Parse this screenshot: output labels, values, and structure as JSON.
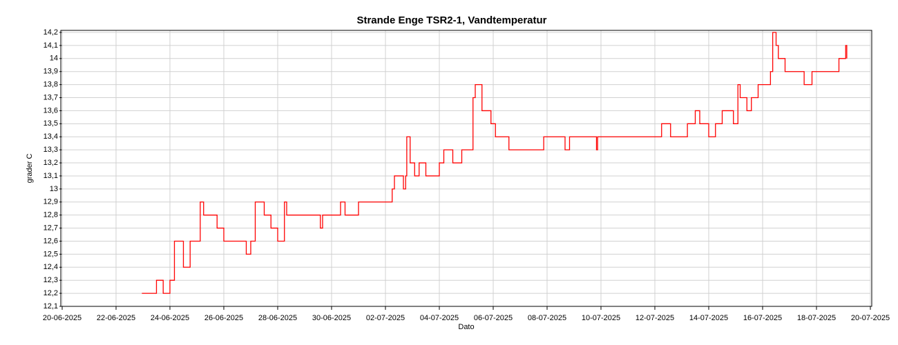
{
  "chart_data": {
    "type": "line",
    "title": "Strande Enge TSR2-1, Vandtemperatur",
    "xlabel": "Dato",
    "ylabel": "grader C",
    "color": "#ff0000",
    "grid": true,
    "x": [
      "2025-06-22T23:00",
      "2025-06-23T06:00",
      "2025-06-23T12:00",
      "2025-06-23T18:00",
      "2025-06-24T00:00",
      "2025-06-24T04:00",
      "2025-06-24T12:00",
      "2025-06-24T18:00",
      "2025-06-25T00:00",
      "2025-06-25T03:00",
      "2025-06-25T06:00",
      "2025-06-25T18:00",
      "2025-06-26T00:00",
      "2025-06-26T20:00",
      "2025-06-27T00:00",
      "2025-06-27T04:00",
      "2025-06-27T12:00",
      "2025-06-27T18:00",
      "2025-06-28T00:00",
      "2025-06-28T02:00",
      "2025-06-28T06:00",
      "2025-06-28T08:00",
      "2025-06-29T12:00",
      "2025-06-29T14:00",
      "2025-06-29T16:00",
      "2025-06-30T06:00",
      "2025-06-30T08:00",
      "2025-06-30T12:00",
      "2025-07-01T00:00",
      "2025-07-02T00:00",
      "2025-07-02T06:00",
      "2025-07-02T08:00",
      "2025-07-02T16:00",
      "2025-07-02T18:00",
      "2025-07-02T19:00",
      "2025-07-02T22:00",
      "2025-07-03T02:00",
      "2025-07-03T06:00",
      "2025-07-03T12:00",
      "2025-07-04T00:00",
      "2025-07-04T04:00",
      "2025-07-04T12:00",
      "2025-07-04T20:00",
      "2025-07-05T06:00",
      "2025-07-05T08:00",
      "2025-07-05T14:00",
      "2025-07-05T22:00",
      "2025-07-06T02:00",
      "2025-07-06T14:00",
      "2025-07-07T21:00",
      "2025-07-08T16:00",
      "2025-07-08T20:00",
      "2025-07-09T20:00",
      "2025-07-09T21:00",
      "2025-07-12T06:00",
      "2025-07-12T14:00",
      "2025-07-13T05:00",
      "2025-07-13T12:00",
      "2025-07-13T16:00",
      "2025-07-14T00:00",
      "2025-07-14T06:00",
      "2025-07-14T12:00",
      "2025-07-14T22:00",
      "2025-07-15T02:00",
      "2025-07-15T04:00",
      "2025-07-15T10:00",
      "2025-07-15T14:00",
      "2025-07-15T20:00",
      "2025-07-16T07:00",
      "2025-07-16T09:00",
      "2025-07-16T12:00",
      "2025-07-16T14:00",
      "2025-07-16T20:00",
      "2025-07-17T13:00",
      "2025-07-17T20:00",
      "2025-07-18T20:00",
      "2025-07-19T02:00",
      "2025-07-19T03:00"
    ],
    "values": [
      12.2,
      12.2,
      12.3,
      12.2,
      12.3,
      12.6,
      12.4,
      12.6,
      12.6,
      12.9,
      12.8,
      12.7,
      12.6,
      12.5,
      12.6,
      12.9,
      12.8,
      12.7,
      12.6,
      12.6,
      12.9,
      12.8,
      12.8,
      12.7,
      12.8,
      12.8,
      12.9,
      12.8,
      12.9,
      12.9,
      13.0,
      13.1,
      13.0,
      13.1,
      13.4,
      13.2,
      13.1,
      13.2,
      13.1,
      13.2,
      13.3,
      13.2,
      13.3,
      13.7,
      13.8,
      13.6,
      13.5,
      13.4,
      13.3,
      13.4,
      13.3,
      13.4,
      13.3,
      13.4,
      13.5,
      13.4,
      13.5,
      13.6,
      13.5,
      13.4,
      13.5,
      13.6,
      13.5,
      13.8,
      13.7,
      13.6,
      13.7,
      13.8,
      13.9,
      14.2,
      14.1,
      14.0,
      13.9,
      13.8,
      13.9,
      14.0,
      14.1,
      14.0
    ],
    "xlim": [
      "2025-06-20T00:00",
      "2025-07-20T00:00"
    ],
    "xticks": [
      {
        "value": "2025-06-20T00:00",
        "label": "20-06-2025"
      },
      {
        "value": "2025-06-22T00:00",
        "label": "22-06-2025"
      },
      {
        "value": "2025-06-24T00:00",
        "label": "24-06-2025"
      },
      {
        "value": "2025-06-26T00:00",
        "label": "26-06-2025"
      },
      {
        "value": "2025-06-28T00:00",
        "label": "28-06-2025"
      },
      {
        "value": "2025-06-30T00:00",
        "label": "30-06-2025"
      },
      {
        "value": "2025-07-02T00:00",
        "label": "02-07-2025"
      },
      {
        "value": "2025-07-04T00:00",
        "label": "04-07-2025"
      },
      {
        "value": "2025-07-06T00:00",
        "label": "06-07-2025"
      },
      {
        "value": "2025-07-08T00:00",
        "label": "08-07-2025"
      },
      {
        "value": "2025-07-10T00:00",
        "label": "10-07-2025"
      },
      {
        "value": "2025-07-12T00:00",
        "label": "12-07-2025"
      },
      {
        "value": "2025-07-14T00:00",
        "label": "14-07-2025"
      },
      {
        "value": "2025-07-16T00:00",
        "label": "16-07-2025"
      },
      {
        "value": "2025-07-18T00:00",
        "label": "18-07-2025"
      },
      {
        "value": "2025-07-20T00:00",
        "label": "20-07-2025"
      }
    ],
    "ylim": [
      12.1,
      14.2
    ],
    "yticks": [
      {
        "value": 12.1,
        "label": "12,1"
      },
      {
        "value": 12.2,
        "label": "12,2"
      },
      {
        "value": 12.3,
        "label": "12,3"
      },
      {
        "value": 12.4,
        "label": "12,4"
      },
      {
        "value": 12.5,
        "label": "12,5"
      },
      {
        "value": 12.6,
        "label": "12,6"
      },
      {
        "value": 12.7,
        "label": "12,7"
      },
      {
        "value": 12.8,
        "label": "12,8"
      },
      {
        "value": 12.9,
        "label": "12,9"
      },
      13,
      {
        "value": 13.1,
        "label": "13,1"
      },
      {
        "value": 13.2,
        "label": "13,2"
      },
      {
        "value": 13.3,
        "label": "13,3"
      },
      {
        "value": 13.4,
        "label": "13,4"
      },
      {
        "value": 13.5,
        "label": "13,5"
      },
      {
        "value": 13.6,
        "label": "13,6"
      },
      {
        "value": 13.7,
        "label": "13,7"
      },
      {
        "value": 13.8,
        "label": "13,8"
      },
      {
        "value": 13.9,
        "label": "13,9"
      },
      14,
      {
        "value": 14.1,
        "label": "14,1"
      },
      {
        "value": 14.2,
        "label": "14,2"
      }
    ]
  }
}
